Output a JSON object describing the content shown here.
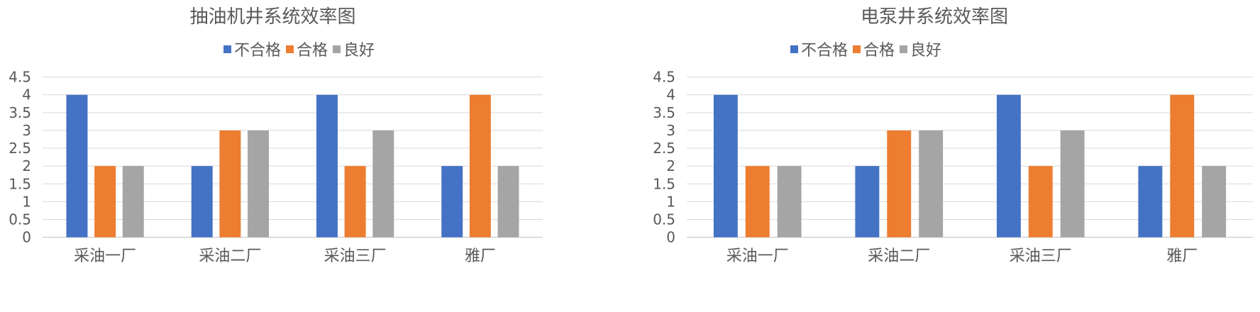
{
  "chart_data": [
    {
      "type": "bar",
      "title": "抽油机井系统效率图",
      "categories": [
        "采油一厂",
        "采油二厂",
        "采油三厂",
        "雅厂"
      ],
      "series": [
        {
          "name": "不合格",
          "color": "#4472C4",
          "values": [
            4,
            2,
            4,
            2
          ]
        },
        {
          "name": "合格",
          "color": "#ED7D31",
          "values": [
            2,
            3,
            2,
            4
          ]
        },
        {
          "name": "良好",
          "color": "#A5A5A5",
          "values": [
            2,
            3,
            3,
            2
          ]
        }
      ],
      "ylim": [
        0,
        4.5
      ],
      "yticks": [
        "0",
        "0.5",
        "1",
        "1.5",
        "2",
        "2.5",
        "3",
        "3.5",
        "4",
        "4.5"
      ],
      "grid": true,
      "legend": "top"
    },
    {
      "type": "bar",
      "title": "电泵井系统效率图",
      "categories": [
        "采油一厂",
        "采油二厂",
        "采油三厂",
        "雅厂"
      ],
      "series": [
        {
          "name": "不合格",
          "color": "#4472C4",
          "values": [
            4,
            2,
            4,
            2
          ]
        },
        {
          "name": "合格",
          "color": "#ED7D31",
          "values": [
            2,
            3,
            2,
            4
          ]
        },
        {
          "name": "良好",
          "color": "#A5A5A5",
          "values": [
            2,
            3,
            3,
            2
          ]
        }
      ],
      "ylim": [
        0,
        4.5
      ],
      "yticks": [
        "0",
        "0.5",
        "1",
        "1.5",
        "2",
        "2.5",
        "3",
        "3.5",
        "4",
        "4.5"
      ],
      "grid": true,
      "legend": "top"
    }
  ]
}
